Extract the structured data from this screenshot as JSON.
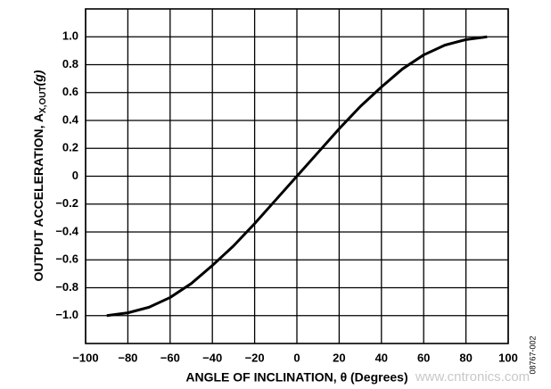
{
  "chart_data": {
    "type": "line",
    "xlabel": "ANGLE OF INCLINATION, θ (Degrees)",
    "ylabel": {
      "main": "OUTPUT ACCELERATION, A",
      "sub": "X,OUT",
      "unit": "(g)"
    },
    "x": [
      -90,
      -80,
      -70,
      -60,
      -50,
      -40,
      -30,
      -20,
      -10,
      0,
      10,
      20,
      30,
      40,
      50,
      60,
      70,
      80,
      90
    ],
    "series": [
      {
        "color": "#000000",
        "values": [
          -1,
          -0.98,
          -0.94,
          -0.87,
          -0.77,
          -0.64,
          -0.5,
          -0.34,
          -0.17,
          0,
          0.17,
          0.34,
          0.5,
          0.64,
          0.77,
          0.87,
          0.94,
          0.98,
          1
        ]
      }
    ],
    "xlim": [
      -100,
      100
    ],
    "xticks": [
      {
        "value": -100,
        "label": "−100"
      },
      {
        "value": -80,
        "label": "−80"
      },
      {
        "value": -60,
        "label": "−60"
      },
      {
        "value": -40,
        "label": "−40"
      },
      {
        "value": -20,
        "label": "−20"
      },
      0,
      20,
      40,
      60,
      80,
      100
    ],
    "ylim": [
      -1.2,
      1.2
    ],
    "yticks": [
      {
        "value": -1,
        "label": "−1.0"
      },
      {
        "value": -0.8,
        "label": "−0.8"
      },
      {
        "value": -0.6,
        "label": "−0.6"
      },
      {
        "value": -0.4,
        "label": "−0.4"
      },
      {
        "value": -0.2,
        "label": "−0.2"
      },
      0,
      0.2,
      0.4,
      0.6,
      0.8,
      {
        "value": 1,
        "label": "1.0"
      }
    ],
    "grid": true,
    "annotations": [
      "08767-002",
      "www.cntronics.com"
    ]
  }
}
